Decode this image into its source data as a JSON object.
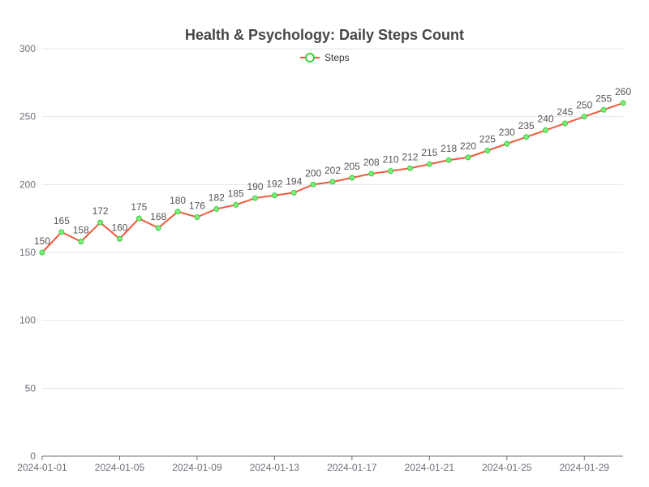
{
  "chart_data": {
    "type": "line",
    "title": "Health & Psychology: Daily Steps Count",
    "x": [
      "2024-01-01",
      "2024-01-02",
      "2024-01-03",
      "2024-01-04",
      "2024-01-05",
      "2024-01-06",
      "2024-01-07",
      "2024-01-08",
      "2024-01-09",
      "2024-01-10",
      "2024-01-11",
      "2024-01-12",
      "2024-01-13",
      "2024-01-14",
      "2024-01-15",
      "2024-01-16",
      "2024-01-17",
      "2024-01-18",
      "2024-01-19",
      "2024-01-20",
      "2024-01-21",
      "2024-01-22",
      "2024-01-23",
      "2024-01-24",
      "2024-01-25",
      "2024-01-26",
      "2024-01-27",
      "2024-01-28",
      "2024-01-29",
      "2024-01-30",
      "2024-01-31"
    ],
    "x_tick_labels": [
      "2024-01-01",
      "2024-01-05",
      "2024-01-09",
      "2024-01-13",
      "2024-01-17",
      "2024-01-21",
      "2024-01-25",
      "2024-01-29"
    ],
    "series": [
      {
        "name": "Steps",
        "values": [
          150,
          165,
          158,
          172,
          160,
          175,
          168,
          180,
          176,
          182,
          185,
          190,
          192,
          194,
          200,
          202,
          205,
          208,
          210,
          212,
          215,
          218,
          220,
          225,
          230,
          235,
          240,
          245,
          250,
          255,
          260
        ]
      }
    ],
    "y_ticks": [
      0,
      50,
      100,
      150,
      200,
      250,
      300
    ],
    "ylim": [
      0,
      300
    ],
    "grid": true,
    "legend_position": "top-center",
    "colors": {
      "line": "#ee5a3c",
      "marker_fill": "#7cf07c",
      "marker_stroke": "#3ecb3e",
      "grid": "#e4e6ec",
      "axis": "#6e7079",
      "title": "#464646",
      "label": "#555555"
    }
  }
}
